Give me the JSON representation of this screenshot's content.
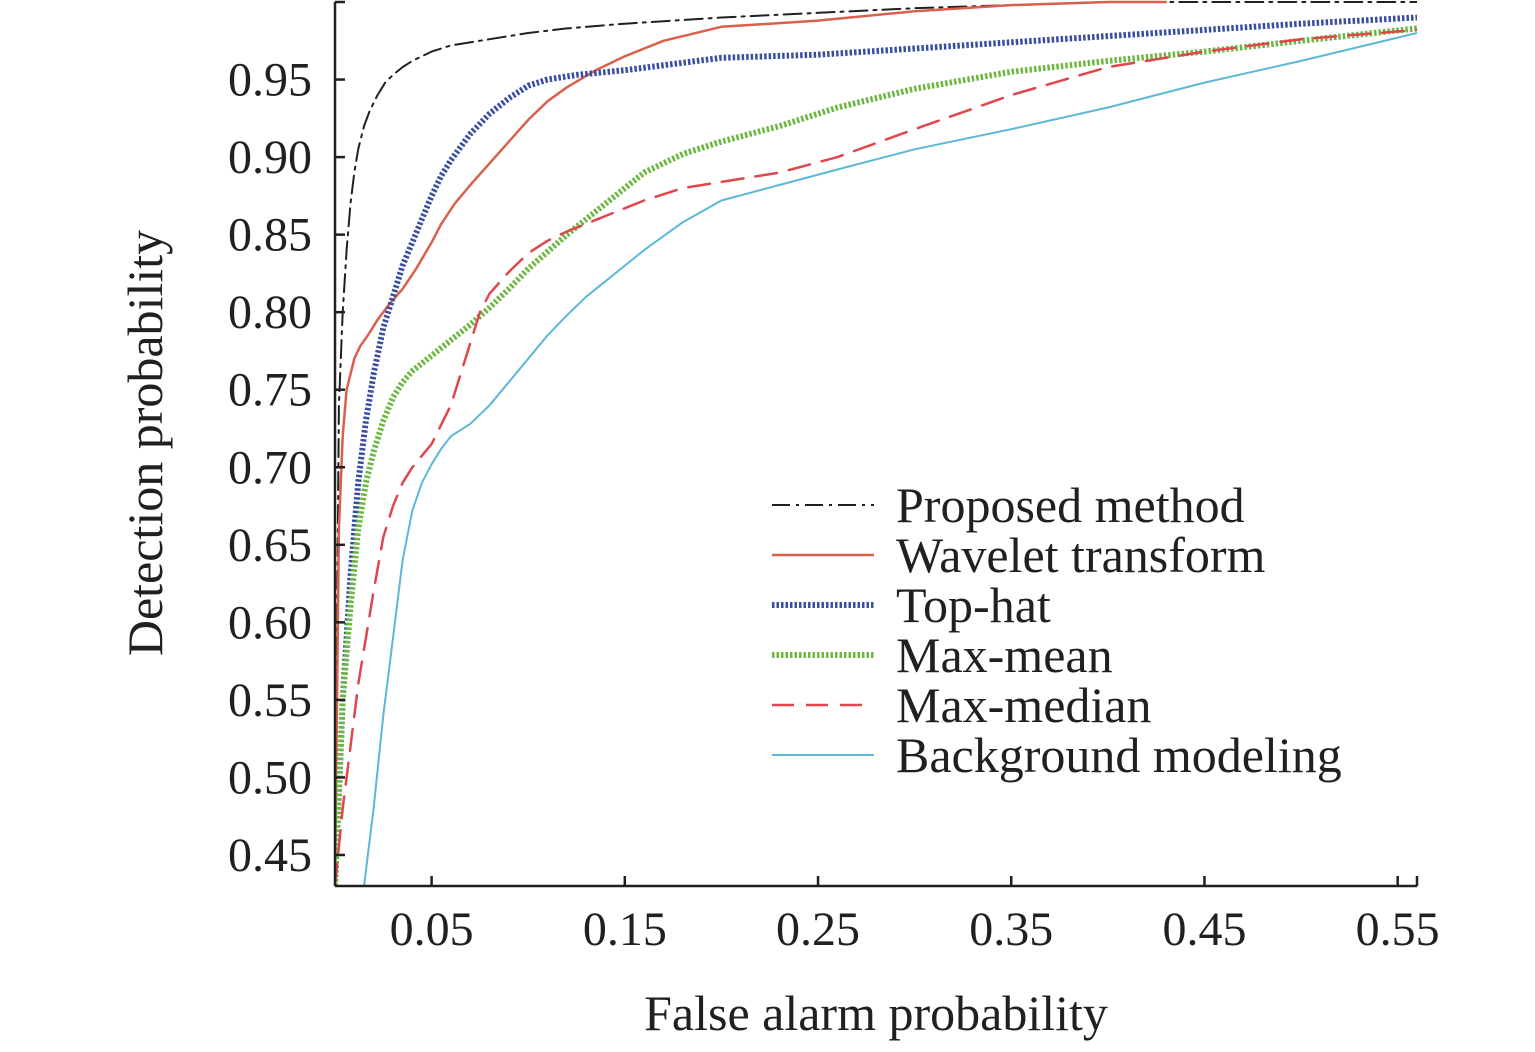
{
  "chart_data": {
    "type": "line",
    "title": "",
    "xlabel": "False alarm probability",
    "ylabel": "Detection probability",
    "xlim": [
      0.0,
      0.56
    ],
    "ylim": [
      0.43,
      1.0
    ],
    "xticks": [
      0.05,
      0.15,
      0.25,
      0.35,
      0.45,
      0.55
    ],
    "xtick_labels": [
      "0.05",
      "0.15",
      "0.25",
      "0.35",
      "0.45",
      "0.55"
    ],
    "yticks": [
      0.45,
      0.5,
      0.55,
      0.6,
      0.65,
      0.7,
      0.75,
      0.8,
      0.85,
      0.9,
      0.95
    ],
    "ytick_labels": [
      "0.45",
      "0.50",
      "0.55",
      "0.60",
      "0.65",
      "0.70",
      "0.75",
      "0.80",
      "0.85",
      "0.90",
      "0.95"
    ],
    "grid": false,
    "legend_position": "right",
    "series": [
      {
        "name": "Proposed method",
        "color": "#231f20",
        "dash": "dashdot",
        "width": 2,
        "x": [
          0.0,
          0.002,
          0.004,
          0.006,
          0.008,
          0.01,
          0.012,
          0.015,
          0.018,
          0.022,
          0.026,
          0.03,
          0.035,
          0.04,
          0.05,
          0.06,
          0.08,
          0.1,
          0.12,
          0.15,
          0.2,
          0.3,
          0.4,
          0.5,
          0.56
        ],
        "y": [
          0.43,
          0.74,
          0.8,
          0.84,
          0.87,
          0.89,
          0.905,
          0.92,
          0.93,
          0.94,
          0.948,
          0.953,
          0.958,
          0.962,
          0.968,
          0.972,
          0.976,
          0.98,
          0.983,
          0.986,
          0.99,
          0.996,
          1.0,
          1.0,
          1.0
        ]
      },
      {
        "name": "Wavelet transform",
        "color": "#d9614c",
        "dash": "solid",
        "width": 2.5,
        "x": [
          0.0,
          0.002,
          0.004,
          0.006,
          0.008,
          0.01,
          0.013,
          0.017,
          0.022,
          0.028,
          0.035,
          0.042,
          0.05,
          0.055,
          0.062,
          0.07,
          0.08,
          0.09,
          0.1,
          0.11,
          0.12,
          0.135,
          0.15,
          0.17,
          0.2,
          0.25,
          0.3,
          0.35,
          0.4,
          0.43
        ],
        "y": [
          0.43,
          0.66,
          0.72,
          0.75,
          0.76,
          0.77,
          0.778,
          0.785,
          0.795,
          0.805,
          0.815,
          0.828,
          0.845,
          0.857,
          0.87,
          0.882,
          0.896,
          0.91,
          0.924,
          0.936,
          0.945,
          0.956,
          0.965,
          0.975,
          0.984,
          0.988,
          0.994,
          0.998,
          1.0,
          1.0
        ]
      },
      {
        "name": "Top-hat",
        "color": "#3a4fa0",
        "dash": "dotted",
        "width": 6,
        "x": [
          0.0,
          0.004,
          0.008,
          0.012,
          0.016,
          0.02,
          0.025,
          0.03,
          0.035,
          0.04,
          0.045,
          0.05,
          0.055,
          0.06,
          0.07,
          0.08,
          0.09,
          0.1,
          0.11,
          0.125,
          0.15,
          0.2,
          0.25,
          0.3,
          0.35,
          0.4,
          0.45,
          0.5,
          0.56
        ],
        "y": [
          0.43,
          0.55,
          0.63,
          0.69,
          0.73,
          0.76,
          0.79,
          0.81,
          0.83,
          0.845,
          0.86,
          0.875,
          0.888,
          0.898,
          0.915,
          0.928,
          0.938,
          0.946,
          0.95,
          0.953,
          0.956,
          0.964,
          0.966,
          0.97,
          0.974,
          0.978,
          0.982,
          0.986,
          0.99
        ]
      },
      {
        "name": "Max-mean",
        "color": "#6cb843",
        "dash": "dotted",
        "width": 6,
        "x": [
          0.0,
          0.004,
          0.008,
          0.012,
          0.016,
          0.02,
          0.025,
          0.03,
          0.035,
          0.04,
          0.05,
          0.06,
          0.07,
          0.08,
          0.09,
          0.1,
          0.12,
          0.14,
          0.16,
          0.18,
          0.2,
          0.23,
          0.26,
          0.3,
          0.35,
          0.4,
          0.45,
          0.5,
          0.56
        ],
        "y": [
          0.43,
          0.55,
          0.61,
          0.66,
          0.69,
          0.71,
          0.73,
          0.745,
          0.755,
          0.762,
          0.772,
          0.782,
          0.792,
          0.803,
          0.815,
          0.828,
          0.85,
          0.87,
          0.89,
          0.902,
          0.91,
          0.92,
          0.932,
          0.944,
          0.955,
          0.962,
          0.968,
          0.975,
          0.983
        ]
      },
      {
        "name": "Max-median",
        "color": "#e0464d",
        "dash": "dashed",
        "width": 2.5,
        "x": [
          0.0,
          0.004,
          0.008,
          0.012,
          0.016,
          0.02,
          0.025,
          0.03,
          0.035,
          0.04,
          0.05,
          0.06,
          0.065,
          0.07,
          0.075,
          0.08,
          0.09,
          0.1,
          0.11,
          0.12,
          0.14,
          0.16,
          0.18,
          0.2,
          0.23,
          0.26,
          0.3,
          0.35,
          0.4,
          0.45,
          0.5,
          0.56
        ],
        "y": [
          0.43,
          0.48,
          0.52,
          0.56,
          0.59,
          0.62,
          0.655,
          0.675,
          0.69,
          0.7,
          0.715,
          0.74,
          0.76,
          0.78,
          0.8,
          0.812,
          0.826,
          0.838,
          0.846,
          0.852,
          0.862,
          0.872,
          0.88,
          0.884,
          0.89,
          0.9,
          0.918,
          0.94,
          0.958,
          0.968,
          0.976,
          0.982
        ]
      },
      {
        "name": "Background modeling",
        "color": "#5bb8d6",
        "dash": "solid",
        "width": 2,
        "x": [
          0.015,
          0.02,
          0.025,
          0.03,
          0.035,
          0.04,
          0.045,
          0.05,
          0.055,
          0.06,
          0.07,
          0.08,
          0.09,
          0.1,
          0.11,
          0.12,
          0.13,
          0.14,
          0.16,
          0.18,
          0.2,
          0.23,
          0.26,
          0.3,
          0.35,
          0.4,
          0.45,
          0.5,
          0.56
        ],
        "y": [
          0.43,
          0.48,
          0.54,
          0.59,
          0.64,
          0.672,
          0.69,
          0.702,
          0.712,
          0.72,
          0.728,
          0.74,
          0.755,
          0.77,
          0.785,
          0.798,
          0.81,
          0.82,
          0.84,
          0.858,
          0.872,
          0.882,
          0.892,
          0.905,
          0.918,
          0.932,
          0.948,
          0.962,
          0.98
        ]
      }
    ]
  }
}
